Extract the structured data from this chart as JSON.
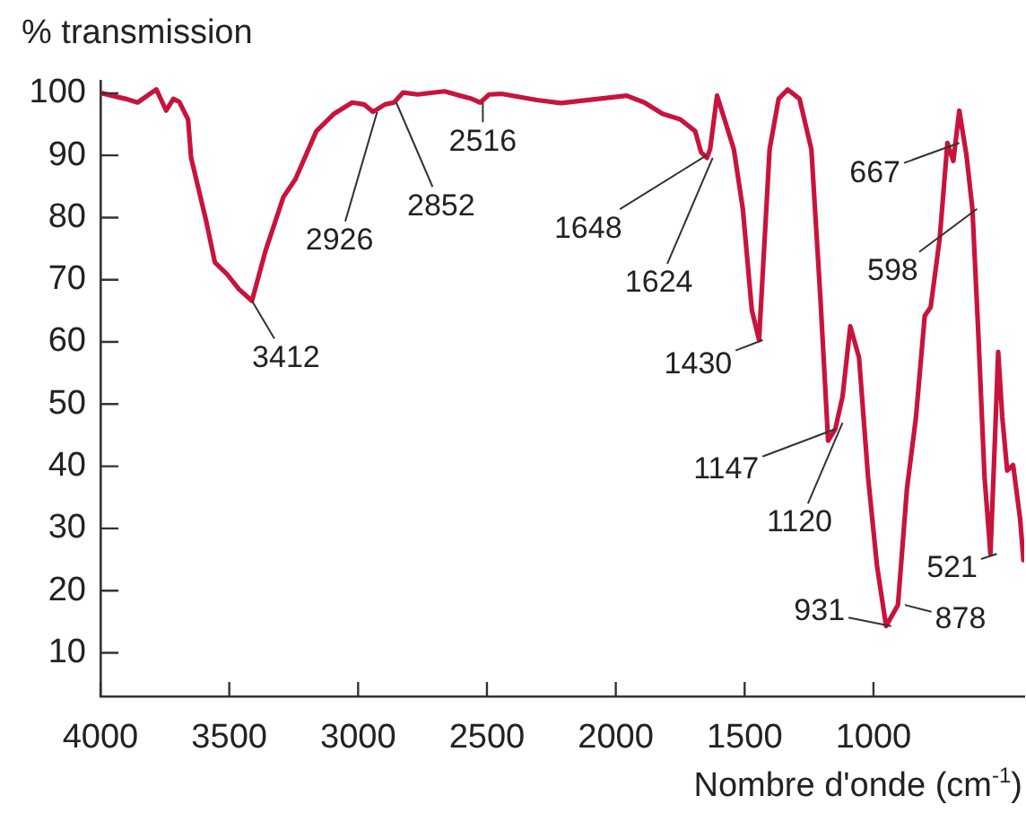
{
  "chart_data": {
    "type": "line",
    "ylabel": "% transmission",
    "xlabel": "Nombre d'onde (cm$^{-1}$)",
    "xlim": [
      4000,
      415
    ],
    "xticks": [
      4000,
      3500,
      3000,
      2500,
      2000,
      1500,
      1000
    ],
    "ylim": [
      3,
      102
    ],
    "yticks": [
      10,
      20,
      30,
      40,
      50,
      60,
      70,
      80,
      90,
      100
    ],
    "grid": false,
    "legend": false,
    "marker": "none",
    "line_style": "solid",
    "series": [
      {
        "color": "#c8143c",
        "x": [
          3995,
          3903,
          3856,
          3783,
          3745,
          3717,
          3694,
          3660,
          3648,
          3590,
          3556,
          3509,
          3463,
          3412,
          3359,
          3290,
          3243,
          3162,
          3093,
          3023,
          2977,
          2942,
          2896,
          2861,
          2826,
          2769,
          2665,
          2560,
          2526,
          2491,
          2444,
          2306,
          2213,
          1958,
          1889,
          1819,
          1750,
          1692,
          1669,
          1646,
          1634,
          1607,
          1578,
          1542,
          1507,
          1472,
          1444,
          1403,
          1368,
          1333,
          1287,
          1241,
          1206,
          1176,
          1148,
          1120,
          1090,
          1056,
          1021,
          986,
          951,
          905,
          870,
          835,
          801,
          778,
          743,
          713,
          690,
          667,
          639,
          616,
          593,
          569,
          546,
          528,
          516,
          500,
          481,
          458,
          431,
          418
        ],
        "values": [
          100,
          99.1,
          98.5,
          100.6,
          97.2,
          99.1,
          98.6,
          95.8,
          89.6,
          79.5,
          72.8,
          70.9,
          68.5,
          66.6,
          74.7,
          83.3,
          86.2,
          93.9,
          96.7,
          98.5,
          98.2,
          97,
          98.2,
          98.5,
          100.1,
          99.8,
          100.3,
          99.1,
          98.5,
          99.8,
          99.9,
          98.9,
          98.4,
          99.6,
          98.5,
          96.7,
          95.8,
          93.9,
          90.5,
          89.6,
          91,
          99.6,
          95.8,
          91,
          81.4,
          65.1,
          60.3,
          91,
          99.1,
          100.6,
          99.1,
          91,
          67.1,
          44.1,
          46,
          51.2,
          62.5,
          57.5,
          38.3,
          23.9,
          14.3,
          17.7,
          36.4,
          47.9,
          64.2,
          65.6,
          76.6,
          92,
          89.1,
          97.2,
          90,
          81.4,
          61.3,
          38.3,
          25.9,
          45,
          58.4,
          47.9,
          39.3,
          40.2,
          31.6,
          24.9
        ]
      }
    ],
    "annotations": [
      {
        "text": "3412",
        "x": 3412,
        "y": 66.6
      },
      {
        "text": "2926",
        "x": 2926,
        "y": 97
      },
      {
        "text": "2852",
        "x": 2852,
        "y": 98.5
      },
      {
        "text": "2516",
        "x": 2516,
        "y": 98.5
      },
      {
        "text": "1648",
        "x": 1648,
        "y": 90
      },
      {
        "text": "1624",
        "x": 1624,
        "y": 89.6
      },
      {
        "text": "1430",
        "x": 1430,
        "y": 60.3
      },
      {
        "text": "1147",
        "x": 1147,
        "y": 46
      },
      {
        "text": "1120",
        "x": 1120,
        "y": 47
      },
      {
        "text": "931",
        "x": 931,
        "y": 14.3
      },
      {
        "text": "878",
        "x": 878,
        "y": 17.7
      },
      {
        "text": "667",
        "x": 667,
        "y": 92
      },
      {
        "text": "598",
        "x": 598,
        "y": 81.4
      },
      {
        "text": "521",
        "x": 521,
        "y": 25.9
      }
    ]
  }
}
